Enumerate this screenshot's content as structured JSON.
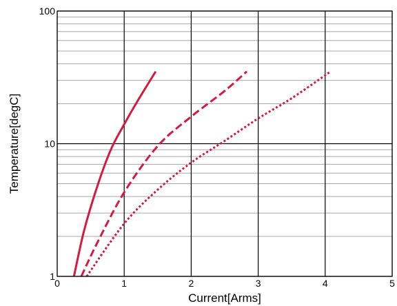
{
  "chart_data": {
    "type": "line",
    "xlabel": "Current[Arms]",
    "ylabel": "Temperature[degC]",
    "xlim": [
      0,
      5
    ],
    "ylim": [
      1,
      100
    ],
    "yscale": "log",
    "grid": true,
    "x_ticks": [
      "0",
      "1",
      "2",
      "3",
      "4",
      "5"
    ],
    "y_ticks": [
      {
        "value": 1,
        "label": "1"
      },
      {
        "value": 10,
        "label": "10"
      },
      {
        "value": 100,
        "label": "100"
      }
    ],
    "series": [
      {
        "style": "solid",
        "color": "#d7193f",
        "x": [
          0.25,
          0.4,
          0.6,
          0.8,
          1.0,
          1.2,
          1.47
        ],
        "y": [
          1.0,
          2.2,
          4.8,
          9.0,
          14.0,
          21.0,
          35.0
        ]
      },
      {
        "style": "dashed",
        "color": "#d7193f",
        "x": [
          0.36,
          0.6,
          1.0,
          1.5,
          2.0,
          2.5,
          2.83
        ],
        "y": [
          1.0,
          1.8,
          4.3,
          9.6,
          16.0,
          25.0,
          35.0
        ]
      },
      {
        "style": "dotted",
        "color": "#d7193f",
        "x": [
          0.44,
          1.0,
          1.5,
          2.0,
          2.5,
          3.0,
          3.5,
          4.08
        ],
        "y": [
          1.0,
          2.5,
          4.5,
          7.2,
          10.5,
          15.5,
          22.0,
          35.0
        ]
      }
    ]
  }
}
